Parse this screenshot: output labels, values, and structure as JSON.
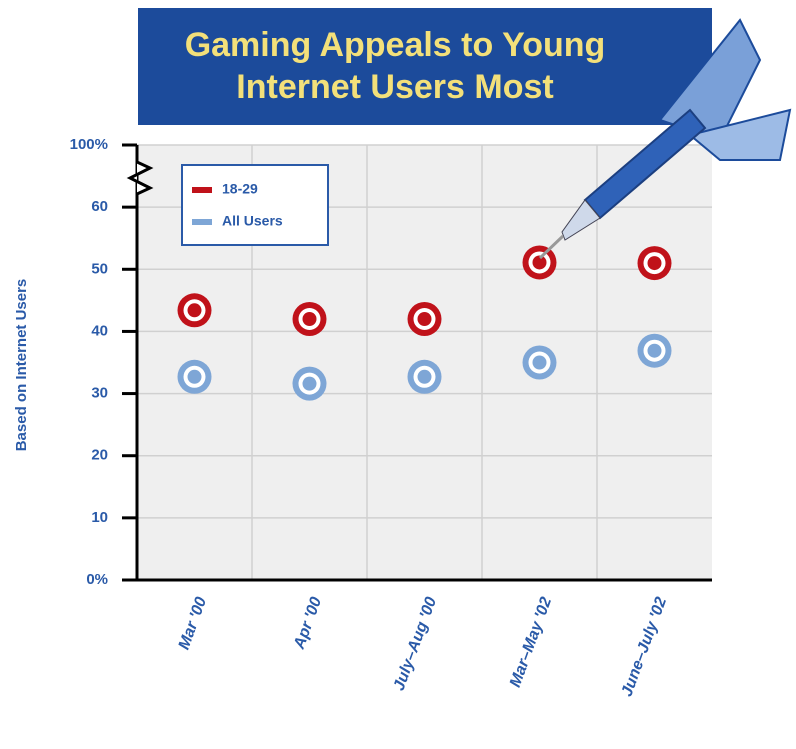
{
  "chart_data": {
    "type": "target-dot",
    "title": "Gaming Appeals to Young Internet Users Most",
    "y_axis_label": "Based on Internet Users",
    "categories": [
      "Mar '00",
      "Apr '00",
      "July–Aug '00",
      "Mar–May '02",
      "June–July '02"
    ],
    "series": [
      {
        "name": "18-29",
        "color": "#c0121a",
        "values": [
          43.4,
          42,
          42,
          51.1,
          51
        ]
      },
      {
        "name": "All Users",
        "color": "#7ea6d6",
        "values": [
          32.7,
          31.6,
          32.7,
          35,
          36.9
        ]
      }
    ],
    "ylim": [
      0,
      100
    ],
    "yticks": [
      {
        "value": 0,
        "label": "0%"
      },
      10,
      20,
      30,
      40,
      50,
      60,
      {
        "value": 100,
        "label": "100%"
      }
    ],
    "axis_break": true,
    "grid": true,
    "legend": "upper left"
  }
}
